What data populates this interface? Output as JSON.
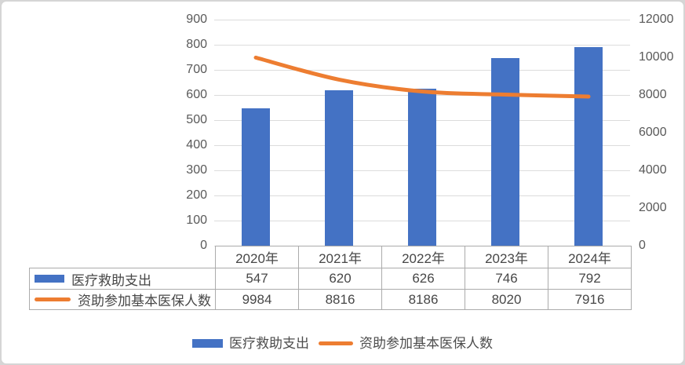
{
  "chart_data": {
    "type": "bar+line combo with data table",
    "categories": [
      "2020年",
      "2021年",
      "2022年",
      "2023年",
      "2024年"
    ],
    "series": [
      {
        "name": "医疗救助支出",
        "type": "bar",
        "axis": "left",
        "color": "#4472C4",
        "values": [
          547,
          620,
          626,
          746,
          792
        ]
      },
      {
        "name": "资助参加基本医保人数",
        "type": "line",
        "axis": "right",
        "color": "#ED7D31",
        "values": [
          9984,
          8816,
          8186,
          8020,
          7916
        ]
      }
    ],
    "left_axis": {
      "min": 0,
      "max": 900,
      "step": 100,
      "tick_labels": [
        "900",
        "800",
        "700",
        "600",
        "500",
        "400",
        "300",
        "200",
        "100",
        "0"
      ]
    },
    "right_axis": {
      "min": 0,
      "max": 12000,
      "step": 2000,
      "tick_labels": [
        "12000",
        "10000",
        "8000",
        "6000",
        "4000",
        "2000",
        "0"
      ]
    },
    "grid": true,
    "legend_position": "bottom",
    "data_table_shown": true,
    "title": "",
    "xlabel": "",
    "ylabel": ""
  },
  "colors": {
    "bar": "#4472C4",
    "line": "#ED7D31",
    "gridline": "#dcdcdc",
    "axis_text": "#595959",
    "table_text": "#474747",
    "table_border": "#ababab",
    "card_border": "#d5d5d5"
  },
  "legend": {
    "items": [
      {
        "label": "医疗救助支出",
        "swatch": "bar"
      },
      {
        "label": "资助参加基本医保人数",
        "swatch": "line"
      }
    ]
  }
}
